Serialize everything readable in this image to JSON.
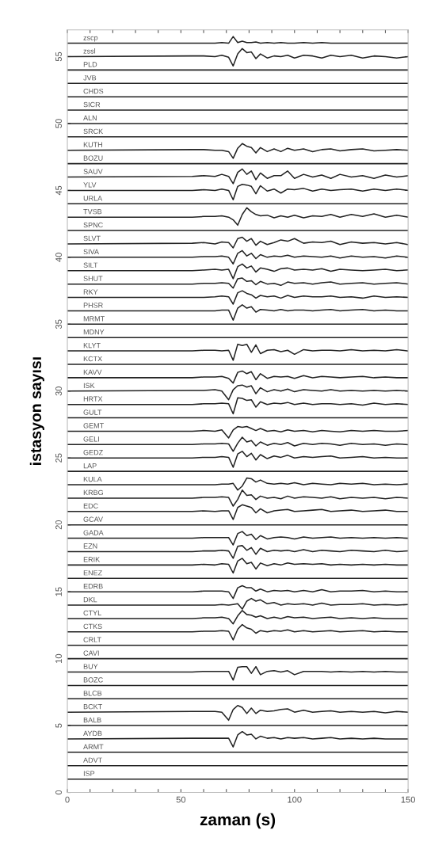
{
  "chart_data": {
    "type": "line",
    "xlabel": "zaman (s)",
    "ylabel": "istasyon sayısı",
    "xlim": [
      0,
      150
    ],
    "ylim": [
      0,
      57
    ],
    "xticks": [
      0,
      {
        "value": 10,
        "label": null
      },
      {
        "value": 20,
        "label": null
      },
      {
        "value": 30,
        "label": null
      },
      {
        "value": 40,
        "label": null
      },
      50,
      {
        "value": 60,
        "label": null
      },
      {
        "value": 70,
        "label": null
      },
      {
        "value": 80,
        "label": null
      },
      {
        "value": 90,
        "label": null
      },
      100,
      {
        "value": 110,
        "label": null
      },
      {
        "value": 120,
        "label": null
      },
      {
        "value": 130,
        "label": null
      },
      {
        "value": 140,
        "label": null
      },
      150
    ],
    "yticks": [
      0,
      5,
      10,
      15,
      20,
      25,
      30,
      35,
      40,
      45,
      50,
      55
    ],
    "grid": false,
    "legend": false,
    "marker": "none",
    "line_style": "solid",
    "x": [
      0,
      55,
      60,
      65,
      68,
      71,
      73,
      75,
      77,
      79,
      81,
      83,
      85,
      88,
      91,
      94,
      97,
      100,
      104,
      108,
      112,
      116,
      120,
      125,
      130,
      135,
      140,
      145,
      150
    ],
    "series": [
      {
        "name": "ISP",
        "color": "#222222",
        "values": [
          1,
          1,
          1,
          1,
          1,
          1,
          1,
          1,
          1,
          1,
          1,
          1,
          1,
          1,
          1,
          1,
          1,
          1,
          1,
          1,
          1,
          1,
          1,
          1,
          1,
          1,
          1,
          1,
          1
        ]
      },
      {
        "name": "ADVT",
        "color": "#222222",
        "values": [
          2,
          2,
          2,
          2,
          2,
          2,
          2,
          2,
          2,
          2,
          2,
          2,
          2,
          2,
          2,
          2,
          2,
          2,
          2,
          2,
          2,
          2,
          2,
          2,
          2,
          2,
          2,
          2,
          2
        ]
      },
      {
        "name": "ARMT",
        "color": "#222222",
        "values": [
          3,
          3,
          3,
          3,
          3,
          3,
          3,
          3,
          3,
          3,
          3,
          3,
          3,
          3,
          3,
          3,
          3,
          3,
          3,
          3,
          3,
          3,
          3,
          3,
          3,
          3,
          3,
          3,
          3
        ]
      },
      {
        "name": "AYDB",
        "color": "#222222",
        "values": [
          4,
          4.05,
          4.05,
          4.05,
          4.05,
          4.05,
          3.4,
          4.3,
          4.55,
          4.3,
          4.35,
          4,
          4.2,
          4.05,
          4.1,
          4,
          4.1,
          4.05,
          4.1,
          4,
          4.05,
          4.1,
          4,
          4.05,
          4,
          4.05,
          4,
          4,
          4
        ]
      },
      {
        "name": "BALB",
        "color": "#222222",
        "values": [
          5,
          5,
          5,
          5,
          5,
          5,
          5,
          5,
          5,
          5,
          5,
          5,
          5,
          5,
          5,
          5,
          5,
          5,
          5,
          5,
          5,
          5,
          5,
          5,
          5,
          5,
          5,
          5,
          5
        ]
      },
      {
        "name": "BCKT",
        "color": "#222222",
        "values": [
          6,
          6.05,
          6.05,
          6.05,
          6,
          5.4,
          6.2,
          6.5,
          6.35,
          5.9,
          6.3,
          5.9,
          6.15,
          6.05,
          6.1,
          6.2,
          6.25,
          6,
          6.15,
          6,
          6.05,
          6.1,
          6,
          6.05,
          6,
          6.05,
          5.95,
          6.05,
          6
        ]
      },
      {
        "name": "BLCB",
        "color": "#222222",
        "values": [
          7,
          7,
          7,
          7,
          7,
          7,
          7,
          7,
          7,
          7,
          7,
          7,
          7,
          7,
          7,
          7,
          7,
          7,
          7,
          7,
          7,
          7,
          7,
          7,
          7,
          7,
          7,
          7,
          7
        ]
      },
      {
        "name": "BOZC",
        "color": "#222222",
        "values": [
          8,
          8,
          8,
          8,
          8,
          8,
          8,
          8,
          8,
          8,
          8,
          8,
          8,
          8,
          8,
          8,
          8,
          8,
          8,
          8,
          8,
          8,
          8,
          8,
          8,
          8,
          8,
          8,
          8
        ]
      },
      {
        "name": "BUY",
        "color": "#222222",
        "values": [
          9,
          9,
          9.05,
          9.05,
          9.05,
          9.05,
          8.4,
          9.35,
          9.4,
          9.4,
          8.9,
          9.4,
          8.8,
          9.05,
          9.1,
          9,
          9.1,
          8.8,
          9.05,
          9.05,
          9.05,
          9,
          9.05,
          9,
          9.05,
          9,
          9.05,
          9,
          9
        ]
      },
      {
        "name": "CAVI",
        "color": "#222222",
        "values": [
          10,
          10,
          10,
          10,
          10,
          10,
          10,
          10,
          10,
          10,
          10,
          10,
          10,
          10,
          10,
          10,
          10,
          10,
          10,
          10,
          10,
          10,
          10,
          10,
          10,
          10,
          10,
          10,
          10
        ]
      },
      {
        "name": "CRLT",
        "color": "#222222",
        "values": [
          11,
          11,
          11,
          11,
          11,
          11,
          11,
          11,
          11,
          11,
          11,
          11,
          11,
          11,
          11,
          11,
          11,
          11,
          11,
          11,
          11,
          11,
          11,
          11,
          11,
          11,
          11,
          11,
          11
        ]
      },
      {
        "name": "CTKS",
        "color": "#222222",
        "values": [
          12,
          12,
          12.05,
          12.05,
          12.1,
          12.05,
          11.4,
          12.2,
          12.55,
          12.3,
          12.2,
          11.9,
          12.1,
          12,
          12.1,
          12.05,
          12.15,
          12,
          12.1,
          12,
          12.05,
          12.1,
          12,
          12.05,
          12.1,
          12,
          12.05,
          12,
          12
        ]
      },
      {
        "name": "CTYL",
        "color": "#222222",
        "values": [
          13,
          13,
          13.05,
          13.05,
          13.1,
          13,
          12.6,
          13.2,
          13.6,
          13.3,
          13.25,
          13.1,
          13.2,
          13,
          13.1,
          13,
          13.15,
          13.05,
          13.1,
          13,
          13.05,
          13.1,
          13,
          13.05,
          13,
          13.05,
          13,
          13,
          13
        ]
      },
      {
        "name": "DKL",
        "color": "#222222",
        "values": [
          14,
          14,
          14,
          14,
          14.05,
          14,
          14.05,
          14.1,
          13.7,
          14.3,
          14.5,
          14.3,
          14.4,
          14.1,
          14.2,
          14,
          14.1,
          14.05,
          14.1,
          14,
          14.15,
          14,
          14.05,
          14.05,
          14.1,
          14,
          14.05,
          14,
          14.05
        ]
      },
      {
        "name": "EDRB",
        "color": "#222222",
        "values": [
          15,
          15,
          15.05,
          15.05,
          15.05,
          15,
          14.5,
          15.3,
          15.45,
          15.3,
          15.3,
          15.05,
          15.2,
          15,
          15.1,
          15.05,
          15.1,
          15,
          15.1,
          15,
          15.15,
          15,
          15.05,
          15.05,
          15.1,
          15,
          15.05,
          15,
          15
        ]
      },
      {
        "name": "ENEZ",
        "color": "#222222",
        "values": [
          16,
          16,
          16,
          16,
          16,
          16,
          16,
          16,
          16,
          16,
          16,
          16,
          16,
          16,
          16,
          16,
          16,
          16,
          16,
          16,
          16,
          16,
          16,
          16,
          16,
          16,
          16,
          16,
          16
        ]
      },
      {
        "name": "ERIK",
        "color": "#222222",
        "values": [
          17,
          17,
          17.05,
          17,
          17.1,
          17.05,
          16.4,
          17.3,
          17.5,
          17.1,
          17.2,
          16.7,
          17.15,
          16.95,
          17.1,
          17,
          17.15,
          17.05,
          17.1,
          17.05,
          17.1,
          17,
          17.05,
          17,
          17.05,
          17,
          17.05,
          17,
          17
        ]
      },
      {
        "name": "EZN",
        "color": "#222222",
        "values": [
          18,
          18,
          18.05,
          18.05,
          18.1,
          18.05,
          17.5,
          18.4,
          18.45,
          18.1,
          18.3,
          17.8,
          18.25,
          18,
          18.1,
          18.05,
          18.1,
          18,
          18.15,
          18,
          18.1,
          18.05,
          18,
          18.1,
          18.05,
          18,
          18.1,
          18,
          18.05
        ]
      },
      {
        "name": "GADA",
        "color": "#222222",
        "values": [
          19,
          19,
          19.05,
          19.05,
          19.05,
          19.05,
          18.5,
          19.35,
          19.5,
          19.2,
          19.3,
          18.9,
          19.2,
          18.95,
          19.05,
          19.1,
          19.05,
          18.95,
          19.1,
          19,
          19.05,
          19.1,
          19,
          19.05,
          19,
          19.05,
          19,
          19.05,
          19
        ]
      },
      {
        "name": "GCAV",
        "color": "#222222",
        "values": [
          20,
          20,
          20,
          20,
          20,
          20,
          20,
          20,
          20,
          20,
          20,
          20,
          20,
          20,
          20,
          20,
          20,
          20,
          20,
          20,
          20,
          20,
          20,
          20,
          20,
          20,
          20,
          20,
          20
        ]
      },
      {
        "name": "EDC",
        "color": "#222222",
        "values": [
          21,
          21,
          21.05,
          21,
          21.05,
          21.05,
          20.4,
          21.3,
          21.5,
          21.4,
          21.3,
          20.9,
          21.2,
          20.9,
          21.05,
          21.1,
          21.15,
          21,
          21.05,
          21.1,
          21.15,
          21,
          21.05,
          21.1,
          21,
          21.05,
          21.1,
          21,
          21
        ]
      },
      {
        "name": "KRBG",
        "color": "#222222",
        "values": [
          22,
          22,
          22.05,
          22.05,
          22.1,
          22.05,
          21.4,
          21.9,
          22.6,
          22.2,
          22.25,
          21.9,
          22.15,
          22,
          22.05,
          21.95,
          22.15,
          22,
          22.1,
          22.05,
          22,
          22.1,
          21.95,
          22.05,
          22,
          22.05,
          21.95,
          22.05,
          22
        ]
      },
      {
        "name": "KULA",
        "color": "#222222",
        "values": [
          23,
          23,
          23,
          23,
          23.05,
          23.05,
          23.1,
          22.6,
          22.9,
          23.5,
          23.45,
          23.2,
          23.35,
          23.1,
          23.05,
          23.1,
          23.05,
          23.15,
          23,
          23.1,
          23.05,
          23,
          23.1,
          23.05,
          23.1,
          23,
          23.05,
          23,
          23.05
        ]
      },
      {
        "name": "LAP",
        "color": "#222222",
        "values": [
          24,
          24,
          24,
          24,
          24,
          24,
          24,
          24,
          24,
          24,
          24,
          24,
          24,
          24,
          24,
          24,
          24,
          24,
          24,
          24,
          24,
          24,
          24,
          24,
          24,
          24,
          24,
          24,
          24
        ]
      },
      {
        "name": "GEDZ",
        "color": "#222222",
        "values": [
          25,
          25,
          25.05,
          25.05,
          25.1,
          25.05,
          24.3,
          25.3,
          25.5,
          25.1,
          25.35,
          24.85,
          25.25,
          24.95,
          25.15,
          25.05,
          25.2,
          25,
          25.1,
          25.05,
          25.1,
          25.15,
          25,
          25.05,
          25.1,
          25,
          25.05,
          25,
          25
        ]
      },
      {
        "name": "GELI",
        "color": "#222222",
        "values": [
          26,
          26,
          26.05,
          26.05,
          26.1,
          26.05,
          25.5,
          26.1,
          26.55,
          26.2,
          26.3,
          25.9,
          26.2,
          25.95,
          26.1,
          26,
          26.15,
          25.9,
          26.1,
          26,
          26.1,
          26.05,
          25.95,
          26.1,
          26,
          26.05,
          25.95,
          26.05,
          26
        ]
      },
      {
        "name": "GEMT",
        "color": "#222222",
        "values": [
          27,
          27,
          27.05,
          27,
          27.1,
          26.5,
          27.1,
          27.35,
          27.3,
          27.35,
          27.2,
          27.05,
          27.2,
          27,
          27.05,
          26.95,
          27.1,
          27,
          27.05,
          26.95,
          27.05,
          27,
          26.95,
          27.05,
          27,
          27.05,
          27,
          27,
          27.05
        ]
      },
      {
        "name": "GULT",
        "color": "#222222",
        "values": [
          28,
          28,
          28,
          28,
          28,
          28,
          28,
          28,
          28,
          28,
          28,
          28,
          28,
          28,
          28,
          28,
          28,
          28,
          28,
          28,
          28,
          28,
          28,
          28,
          28,
          28,
          28,
          28,
          28
        ]
      },
      {
        "name": "HRTX",
        "color": "#222222",
        "values": [
          29,
          29,
          29.05,
          29.05,
          29.1,
          29.05,
          28.3,
          29.5,
          29.45,
          29.3,
          29.35,
          28.8,
          29.2,
          29,
          29.1,
          29.05,
          29.15,
          29,
          29.1,
          29,
          29.05,
          29.05,
          29,
          29.05,
          28.95,
          29.1,
          29,
          29.05,
          29
        ]
      },
      {
        "name": "ISK",
        "color": "#222222",
        "values": [
          30,
          30.05,
          30.05,
          30.1,
          30,
          29.35,
          30.1,
          30.4,
          30.45,
          30.3,
          30.4,
          29.8,
          30.25,
          29.95,
          30.1,
          30,
          30.15,
          29.95,
          30.1,
          30.05,
          30,
          30.1,
          30,
          30.05,
          30,
          30.05,
          30,
          30.05,
          30
        ]
      },
      {
        "name": "KAVV",
        "color": "#222222",
        "values": [
          31,
          31,
          31.05,
          31.05,
          31.1,
          30.95,
          30.6,
          31.4,
          31.5,
          31.3,
          31.45,
          30.85,
          31.3,
          30.95,
          31.1,
          31.05,
          31.1,
          30.95,
          31.15,
          31,
          31.1,
          31.05,
          31,
          31.05,
          31.1,
          31,
          31.05,
          31,
          31
        ]
      },
      {
        "name": "KCTX",
        "color": "#222222",
        "values": [
          32,
          32,
          32,
          32,
          32,
          32,
          32,
          32,
          32,
          32,
          32,
          32,
          32,
          32,
          32,
          32,
          32,
          32,
          32,
          32,
          32,
          32,
          32,
          32,
          32,
          32,
          32,
          32,
          32
        ]
      },
      {
        "name": "KLYT",
        "color": "#222222",
        "values": [
          33,
          33,
          33.05,
          33.05,
          33,
          33.05,
          32.3,
          33.5,
          33.4,
          33.5,
          32.9,
          33.45,
          32.8,
          33.05,
          33.1,
          32.95,
          33.05,
          32.75,
          33.1,
          33,
          33.05,
          33.05,
          33,
          33.1,
          33,
          33.05,
          33,
          33.1,
          33
        ]
      },
      {
        "name": "MDNY",
        "color": "#222222",
        "values": [
          34,
          34,
          34,
          34,
          34,
          34,
          34,
          34,
          34,
          34,
          34,
          34,
          34,
          34,
          34,
          34,
          34,
          34,
          34,
          34,
          34,
          34,
          34,
          34,
          34,
          34,
          34,
          34,
          34
        ]
      },
      {
        "name": "MRMT",
        "color": "#222222",
        "values": [
          35,
          35,
          35,
          35,
          35,
          35,
          35,
          35,
          35,
          35,
          35,
          35,
          35,
          35,
          35,
          35,
          35,
          35,
          35,
          35,
          35,
          35,
          35,
          35,
          35,
          35,
          35,
          35,
          35
        ]
      },
      {
        "name": "PHSR",
        "color": "#222222",
        "values": [
          36,
          36,
          36,
          36,
          36.05,
          36.05,
          35.3,
          36.2,
          36.45,
          36.2,
          36.3,
          35.9,
          36.1,
          36.05,
          36,
          36.1,
          36,
          36.05,
          36.05,
          36,
          36.05,
          36.1,
          36,
          36.05,
          36.1,
          36,
          36.05,
          36,
          36
        ]
      },
      {
        "name": "RKY",
        "color": "#222222",
        "values": [
          37,
          37,
          37,
          37.05,
          37.1,
          37.05,
          36.5,
          37.35,
          37.5,
          37.3,
          37.2,
          36.95,
          37.15,
          37.05,
          37.1,
          36.95,
          37.15,
          37,
          37.1,
          37.05,
          37.05,
          37.1,
          37,
          37.05,
          36.95,
          37.1,
          37,
          37.05,
          37
        ]
      },
      {
        "name": "SHUT",
        "color": "#222222",
        "values": [
          38,
          38,
          38.05,
          38.05,
          38.1,
          38.05,
          37.7,
          38.4,
          38.45,
          38.2,
          38.25,
          37.95,
          38.2,
          38,
          38.05,
          37.9,
          38.15,
          38.05,
          38.1,
          38,
          38.1,
          38.15,
          38,
          38.05,
          38.1,
          38,
          38.05,
          38.1,
          38
        ]
      },
      {
        "name": "SILT",
        "color": "#222222",
        "values": [
          39,
          39,
          39.05,
          39.1,
          39.05,
          39.1,
          38.4,
          39.3,
          39.5,
          39.2,
          39.35,
          38.9,
          39.2,
          39.1,
          38.95,
          39.15,
          39.2,
          39.05,
          39.1,
          39.05,
          39.15,
          38.95,
          39.1,
          39.05,
          39,
          39.05,
          39.1,
          39,
          39.05
        ]
      },
      {
        "name": "SIVA",
        "color": "#222222",
        "values": [
          40,
          40,
          40.05,
          40.05,
          40.1,
          40,
          39.5,
          40.3,
          40.5,
          40.1,
          40.3,
          39.9,
          40.2,
          40,
          40.1,
          40.05,
          40.15,
          40,
          40.1,
          40.05,
          40,
          40.1,
          39.95,
          40.1,
          40,
          40.05,
          39.95,
          40.1,
          40
        ]
      },
      {
        "name": "SLVT",
        "color": "#222222",
        "values": [
          41,
          41.05,
          41.1,
          41,
          41.15,
          41.1,
          40.7,
          41.4,
          41.5,
          41.2,
          41.4,
          40.9,
          41.2,
          40.95,
          41.1,
          41.3,
          41.2,
          41.4,
          41.05,
          41.15,
          41.1,
          41.2,
          40.95,
          41.15,
          41.05,
          41.1,
          41,
          41.1,
          40.95
        ]
      },
      {
        "name": "SPNC",
        "color": "#222222",
        "values": [
          42,
          42,
          42,
          42,
          42,
          42,
          42,
          42,
          42,
          42,
          42,
          42,
          42,
          42,
          42,
          42,
          42,
          42,
          42,
          42,
          42,
          42,
          42,
          42,
          42,
          42,
          42,
          42,
          42
        ]
      },
      {
        "name": "TVSB",
        "color": "#222222",
        "values": [
          43,
          43,
          43.05,
          43.05,
          43.1,
          43,
          42.8,
          42.4,
          43.2,
          43.7,
          43.4,
          43.2,
          43.1,
          43.15,
          42.95,
          43.1,
          43,
          43.15,
          42.95,
          43.1,
          43.05,
          43.2,
          43,
          43.2,
          43.05,
          43.25,
          43,
          43.15,
          43
        ]
      },
      {
        "name": "URLA",
        "color": "#222222",
        "values": [
          44,
          44,
          44,
          44,
          44,
          44,
          44,
          44,
          44,
          44,
          44,
          44,
          44,
          44,
          44,
          44,
          44,
          44,
          44,
          44,
          44,
          44,
          44,
          44,
          44,
          44,
          44,
          44,
          44
        ]
      },
      {
        "name": "YLV",
        "color": "#222222",
        "values": [
          45,
          45,
          45.05,
          45,
          45.1,
          45,
          44.3,
          45.3,
          45.45,
          45.4,
          45.3,
          44.75,
          45.35,
          44.95,
          45.1,
          44.8,
          45.1,
          45.05,
          45.15,
          44.95,
          45.1,
          45,
          45.05,
          45.1,
          44.95,
          45.1,
          45,
          45.1,
          45
        ]
      },
      {
        "name": "SAUV",
        "color": "#222222",
        "values": [
          46,
          46.05,
          46.1,
          46.05,
          46.2,
          46.05,
          45.5,
          46.35,
          46.6,
          46.2,
          46.45,
          45.8,
          46.3,
          45.9,
          46.1,
          46.1,
          46.45,
          45.9,
          46.2,
          46,
          46.15,
          45.9,
          46.2,
          46,
          46.1,
          45.9,
          46.15,
          46,
          46.1
        ]
      },
      {
        "name": "BOZU",
        "color": "#222222",
        "values": [
          47,
          47,
          47,
          47,
          47,
          47,
          47,
          47,
          47,
          47,
          47,
          47,
          47,
          47,
          47,
          47,
          47,
          47,
          47,
          47,
          47,
          47,
          47,
          47,
          47,
          47,
          47,
          47,
          47
        ]
      },
      {
        "name": "KUTH",
        "color": "#222222",
        "values": [
          48,
          48.05,
          48.05,
          48,
          48,
          47.9,
          47.4,
          48.15,
          48.5,
          48.3,
          48.2,
          47.8,
          48.2,
          47.9,
          48.1,
          47.9,
          48.15,
          48,
          48.1,
          47.9,
          48.05,
          48.1,
          47.95,
          48.05,
          48.1,
          47.95,
          48,
          48.05,
          48
        ]
      },
      {
        "name": "SRCK",
        "color": "#222222",
        "values": [
          49,
          49,
          49,
          49,
          49,
          49,
          49,
          49,
          49,
          49,
          49,
          49,
          49,
          49,
          49,
          49,
          49,
          49,
          49,
          49,
          49,
          49,
          49,
          49,
          49,
          49,
          49,
          49,
          49
        ]
      },
      {
        "name": "ALN",
        "color": "#222222",
        "values": [
          50,
          50,
          50,
          50,
          50,
          50,
          50,
          50,
          50,
          50,
          50,
          50,
          50,
          50,
          50,
          50,
          50,
          50,
          50,
          50,
          50,
          50,
          50,
          50,
          50,
          50,
          50,
          50,
          50
        ]
      },
      {
        "name": "SICR",
        "color": "#222222",
        "values": [
          51,
          51,
          51,
          51,
          51,
          51,
          51,
          51,
          51,
          51,
          51,
          51,
          51,
          51,
          51,
          51,
          51,
          51,
          51,
          51,
          51,
          51,
          51,
          51,
          51,
          51,
          51,
          51,
          51
        ]
      },
      {
        "name": "CHDS",
        "color": "#222222",
        "values": [
          52,
          52,
          52,
          52,
          52,
          52,
          52,
          52,
          52,
          52,
          52,
          52,
          52,
          52,
          52,
          52,
          52,
          52,
          52,
          52,
          52,
          52,
          52,
          52,
          52,
          52,
          52,
          52,
          52
        ]
      },
      {
        "name": "JVB",
        "color": "#222222",
        "values": [
          53,
          53,
          53,
          53,
          53,
          53,
          53,
          53,
          53,
          53,
          53,
          53,
          53,
          53,
          53,
          53,
          53,
          53,
          53,
          53,
          53,
          53,
          53,
          53,
          53,
          53,
          53,
          53,
          53
        ]
      },
      {
        "name": "PLD",
        "color": "#222222",
        "values": [
          54,
          54,
          54,
          54,
          54,
          54,
          54,
          54,
          54,
          54,
          54,
          54,
          54,
          54,
          54,
          54,
          54,
          54,
          54,
          54,
          54,
          54,
          54,
          54,
          54,
          54,
          54,
          54,
          54
        ]
      },
      {
        "name": "zssl",
        "color": "#222222",
        "values": [
          55,
          55.05,
          55.05,
          55,
          55.1,
          54.95,
          54.3,
          55.2,
          55.6,
          55.3,
          55.35,
          54.85,
          55.2,
          54.9,
          55.05,
          55,
          55.1,
          54.9,
          55.1,
          55.05,
          54.9,
          55.1,
          55,
          55.1,
          54.9,
          55.05,
          55,
          54.9,
          55
        ]
      },
      {
        "name": "zscp",
        "color": "#222222",
        "values": [
          56,
          56,
          56,
          56,
          56.05,
          56,
          56.5,
          56.05,
          56.15,
          56.05,
          56.05,
          56.1,
          56,
          56.05,
          56,
          56.05,
          56,
          56,
          56.05,
          56,
          56.05,
          56,
          56,
          56,
          56,
          56,
          56,
          56,
          56
        ]
      }
    ]
  }
}
